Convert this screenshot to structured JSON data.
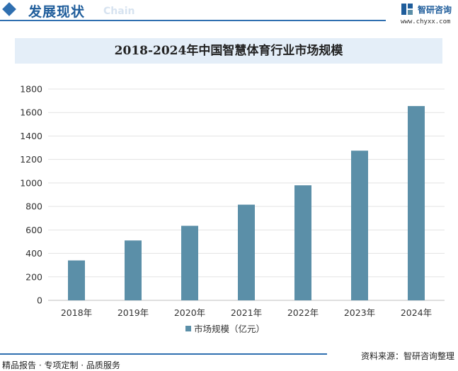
{
  "header": {
    "section_title": "发展现状",
    "section_en": "Chain"
  },
  "logo": {
    "name": "智研咨询",
    "url": "www.chyxx.com"
  },
  "chart_data": {
    "type": "bar",
    "title": "2018-2024年中国智慧体育行业市场规模",
    "categories": [
      "2018年",
      "2019年",
      "2020年",
      "2021年",
      "2022年",
      "2023年",
      "2024年"
    ],
    "series": [
      {
        "name": "市场规模（亿元）",
        "values": [
          340,
          510,
          635,
          815,
          980,
          1275,
          1655
        ],
        "color": "#5b8fa8"
      }
    ],
    "ylim": [
      0,
      1800
    ],
    "yticks": [
      0,
      200,
      400,
      600,
      800,
      1000,
      1200,
      1400,
      1600,
      1800
    ],
    "grid": true,
    "legend": "bottom"
  },
  "footer": {
    "left": "精品报告 · 专项定制 · 品质服务",
    "source": "资料来源：智研咨询整理"
  }
}
